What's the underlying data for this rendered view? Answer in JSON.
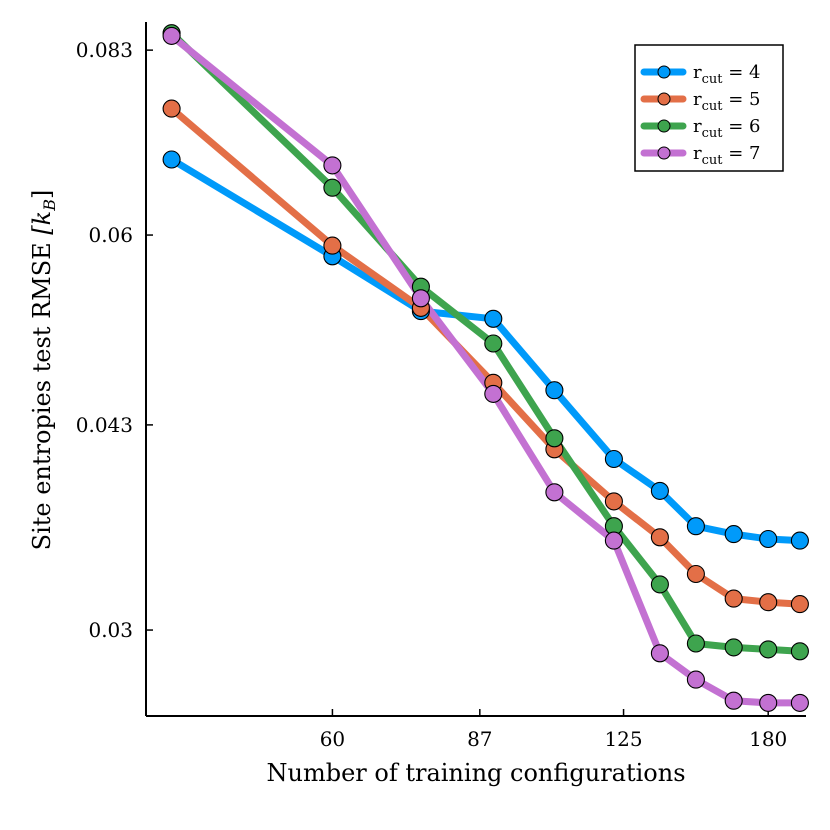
{
  "chart_data": {
    "type": "line",
    "xlabel": "Number of training configurations",
    "ylabel": "Site entropies test RMSE",
    "ylabel_unit": "[k",
    "ylabel_unit_sub": "B",
    "ylabel_unit_close": "]",
    "xscale": "log",
    "yscale": "log",
    "xlim": [
      37.5,
      198
    ],
    "ylim": [
      0.0258,
      0.0872
    ],
    "xticks": [
      {
        "value": 60,
        "label": "60"
      },
      {
        "value": 87,
        "label": "87"
      },
      {
        "value": 125,
        "label": "125"
      },
      {
        "value": 180,
        "label": "180"
      }
    ],
    "yticks": [
      {
        "value": 0.03,
        "label": "0.03"
      },
      {
        "value": 0.043,
        "label": "0.043"
      },
      {
        "value": 0.06,
        "label": "0.06"
      },
      {
        "value": 0.083,
        "label": "0.083"
      }
    ],
    "x": [
      40,
      60,
      75,
      90,
      105,
      122,
      137,
      150,
      165,
      180,
      195
    ],
    "legend_position": "top-right",
    "grid": false,
    "series": [
      {
        "name": "r",
        "name_sub": "cut",
        "name_suffix": " = 4",
        "color": "#009AFA",
        "values": [
          0.0685,
          0.0578,
          0.0525,
          0.0518,
          0.0457,
          0.0405,
          0.0383,
          0.036,
          0.0355,
          0.0352,
          0.0351
        ]
      },
      {
        "name": "r",
        "name_sub": "cut",
        "name_suffix": " = 5",
        "color": "#E36F47",
        "values": [
          0.0749,
          0.0589,
          0.0528,
          0.0463,
          0.0412,
          0.0376,
          0.0353,
          0.0331,
          0.0317,
          0.0315,
          0.0314
        ]
      },
      {
        "name": "r",
        "name_sub": "cut",
        "name_suffix": " = 6",
        "color": "#3EA44E",
        "values": [
          0.0855,
          0.0652,
          0.0548,
          0.0496,
          0.042,
          0.036,
          0.0325,
          0.0293,
          0.0291,
          0.029,
          0.0289
        ]
      },
      {
        "name": "r",
        "name_sub": "cut",
        "name_suffix": " = 7",
        "color": "#C371D2",
        "values": [
          0.0851,
          0.0678,
          0.0537,
          0.0454,
          0.0382,
          0.0351,
          0.0288,
          0.0275,
          0.0265,
          0.0264,
          0.0264
        ]
      }
    ]
  }
}
